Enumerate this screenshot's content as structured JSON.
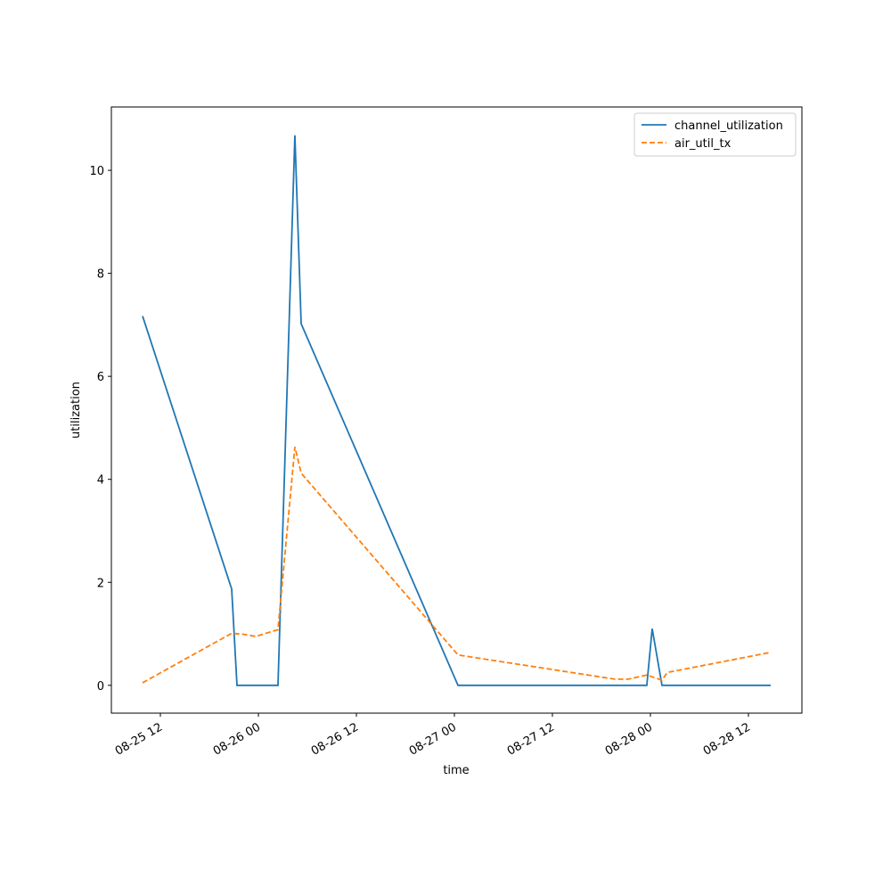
{
  "chart_data": {
    "type": "line",
    "x_label": "time",
    "y_label": "utilization",
    "x": [
      9.82,
      20.73,
      21.38,
      26.4,
      28.47,
      29.24,
      48.44,
      71.56,
      72.22,
      73.42,
      86.73
    ],
    "series": [
      {
        "name": "channel_utilization",
        "color": "#1f77b4",
        "linestyle": "solid",
        "x": [
          9.82,
          20.73,
          21.38,
          26.4,
          28.47,
          29.24,
          48.44,
          71.56,
          72.22,
          73.42,
          86.73
        ],
        "values": [
          7.17,
          1.87,
          0,
          0,
          10.68,
          7.02,
          0,
          0,
          1.1,
          0,
          0
        ]
      },
      {
        "name": "air_util_tx",
        "color": "#ff7f0e",
        "linestyle": "dashed",
        "x": [
          9.82,
          20.73,
          22.25,
          23.67,
          26.4,
          28.47,
          29.24,
          48.44,
          67.64,
          69.27,
          71.56,
          73.42,
          74.07,
          86.73
        ],
        "values": [
          0.05,
          1.01,
          0.99,
          0.95,
          1.08,
          4.63,
          4.12,
          0.59,
          0.12,
          0.12,
          0.2,
          0.1,
          0.25,
          0.64
        ]
      }
    ],
    "xlim": [
      6.0,
      90.55
    ],
    "ylim": [
      -0.54,
      11.23
    ],
    "xticks": [
      {
        "value": 12,
        "label": "08-25 12"
      },
      {
        "value": 24,
        "label": "08-26 00"
      },
      {
        "value": 36,
        "label": "08-26 12"
      },
      {
        "value": 48,
        "label": "08-27 00"
      },
      {
        "value": 60,
        "label": "08-27 12"
      },
      {
        "value": 72,
        "label": "08-28 00"
      },
      {
        "value": 84,
        "label": "08-28 12"
      }
    ],
    "yticks": [
      0,
      2,
      4,
      6,
      8,
      10
    ],
    "grid": false,
    "legend": "upper right"
  }
}
